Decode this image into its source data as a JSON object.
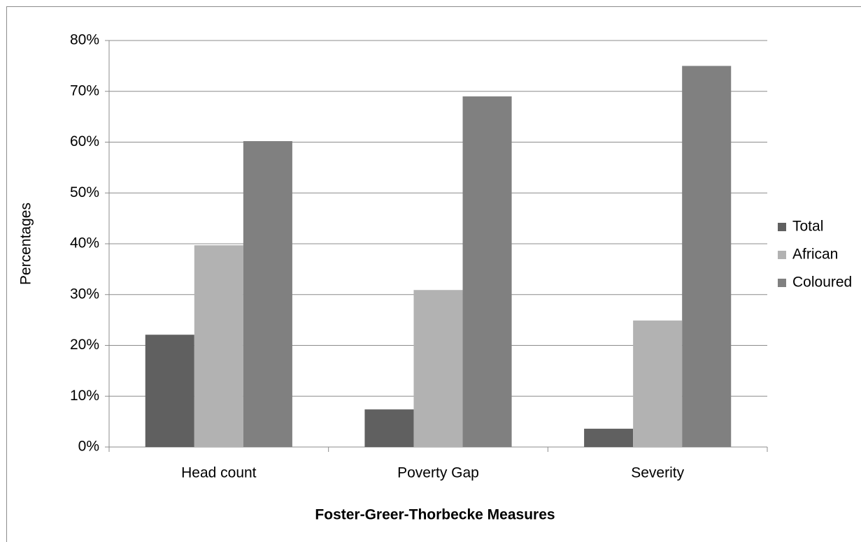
{
  "chart_data": {
    "type": "bar",
    "x_label": "Foster-Greer-Thorbecke Measures",
    "y_label": "Percentages",
    "categories": [
      "Head count",
      "Poverty Gap",
      "Severity"
    ],
    "series": [
      {
        "name": "Total",
        "color": "#606060",
        "values": [
          22.1,
          7.4,
          3.6
        ]
      },
      {
        "name": "African",
        "color": "#b2b2b2",
        "values": [
          39.7,
          30.9,
          24.9
        ]
      },
      {
        "name": "Coloured",
        "color": "#808080",
        "values": [
          60.2,
          69,
          75
        ]
      }
    ],
    "ylim": [
      0,
      80
    ],
    "yticks": [
      {
        "value": 0,
        "label": "0%"
      },
      {
        "value": 10,
        "label": "10%"
      },
      {
        "value": 20,
        "label": "20%"
      },
      {
        "value": 30,
        "label": "30%"
      },
      {
        "value": 40,
        "label": "40%"
      },
      {
        "value": 50,
        "label": "50%"
      },
      {
        "value": 60,
        "label": "60%"
      },
      {
        "value": 70,
        "label": "70%"
      },
      {
        "value": 80,
        "label": "80%"
      }
    ],
    "grid": true,
    "legend": "right"
  }
}
